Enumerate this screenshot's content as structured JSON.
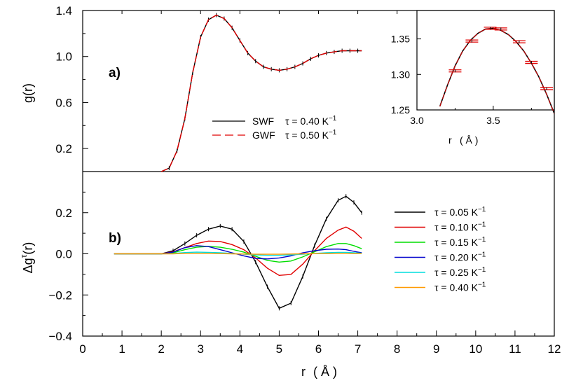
{
  "chart_data": [
    {
      "panel": "a)",
      "type": "line",
      "xlabel": "",
      "ylabel": "g(r)",
      "xlim": [
        0,
        12
      ],
      "ylim": [
        0.0,
        1.4
      ],
      "yticks": [
        "0.2",
        "0.6",
        "1.0",
        "1.4"
      ],
      "ytick_values": [
        0.2,
        0.6,
        1.0,
        1.4
      ],
      "series": [
        {
          "name": "SWF",
          "tau": "τ = 0.40 K",
          "unit_sup": "−1",
          "color": "#000000",
          "style": "solid",
          "x": [
            2.0,
            2.2,
            2.4,
            2.6,
            2.8,
            3.0,
            3.2,
            3.4,
            3.6,
            3.8,
            4.0,
            4.2,
            4.4,
            4.6,
            4.8,
            5.0,
            5.2,
            5.4,
            5.6,
            5.8,
            6.0,
            6.2,
            6.4,
            6.6,
            6.8,
            7.0,
            7.1
          ],
          "y": [
            0.0,
            0.03,
            0.18,
            0.46,
            0.86,
            1.17,
            1.32,
            1.36,
            1.33,
            1.25,
            1.14,
            1.03,
            0.96,
            0.91,
            0.89,
            0.88,
            0.89,
            0.91,
            0.94,
            0.98,
            1.01,
            1.03,
            1.04,
            1.05,
            1.05,
            1.05,
            1.05
          ]
        },
        {
          "name": "GWF",
          "tau": "τ = 0.50 K",
          "unit_sup": "−1",
          "color": "#e00000",
          "style": "dashed",
          "x": [
            2.0,
            2.2,
            2.4,
            2.6,
            2.8,
            3.0,
            3.2,
            3.4,
            3.6,
            3.8,
            4.0,
            4.2,
            4.4,
            4.6,
            4.8,
            5.0,
            5.2,
            5.4,
            5.6,
            5.8,
            6.0,
            6.2,
            6.4,
            6.6,
            6.8,
            7.0,
            7.1
          ],
          "y": [
            0.0,
            0.03,
            0.18,
            0.46,
            0.86,
            1.17,
            1.32,
            1.36,
            1.33,
            1.25,
            1.14,
            1.03,
            0.96,
            0.91,
            0.89,
            0.88,
            0.89,
            0.91,
            0.94,
            0.98,
            1.01,
            1.03,
            1.04,
            1.05,
            1.05,
            1.05,
            1.05
          ]
        }
      ]
    },
    {
      "panel": "inset",
      "type": "line",
      "xlabel": "r",
      "xlabel_unit": "( Å )",
      "xlim": [
        3.0,
        3.9
      ],
      "ylim": [
        1.25,
        1.39
      ],
      "xticks": [
        "3.0",
        "3.5"
      ],
      "xtick_values": [
        3.0,
        3.5
      ],
      "yticks": [
        "1.25",
        "1.30",
        "1.35"
      ],
      "ytick_values": [
        1.25,
        1.3,
        1.35
      ],
      "curve": {
        "x": [
          3.15,
          3.2,
          3.25,
          3.3,
          3.35,
          3.4,
          3.45,
          3.5,
          3.55,
          3.6,
          3.65,
          3.7,
          3.75,
          3.8,
          3.85,
          3.9
        ],
        "y": [
          1.255,
          1.285,
          1.312,
          1.333,
          1.348,
          1.358,
          1.364,
          1.365,
          1.362,
          1.356,
          1.346,
          1.333,
          1.316,
          1.296,
          1.272,
          1.245
        ]
      },
      "error_points": [
        {
          "x": 3.25,
          "y": 1.305
        },
        {
          "x": 3.36,
          "y": 1.347
        },
        {
          "x": 3.48,
          "y": 1.365
        },
        {
          "x": 3.55,
          "y": 1.364
        },
        {
          "x": 3.67,
          "y": 1.346
        },
        {
          "x": 3.75,
          "y": 1.317
        },
        {
          "x": 3.85,
          "y": 1.28
        }
      ]
    },
    {
      "panel": "b)",
      "type": "line",
      "xlabel": "r",
      "xlabel_unit": "( Å )",
      "ylabel": "Δg",
      "ylabel_sup": "τ",
      "ylabel_suffix": "(r)",
      "xlim": [
        0,
        12
      ],
      "ylim": [
        -0.4,
        0.4
      ],
      "xticks": [
        "0",
        "1",
        "2",
        "3",
        "4",
        "5",
        "6",
        "7",
        "8",
        "9",
        "10",
        "11",
        "12"
      ],
      "xtick_values": [
        0,
        1,
        2,
        3,
        4,
        5,
        6,
        7,
        8,
        9,
        10,
        11,
        12
      ],
      "yticks": [
        "−0.4",
        "−0.2",
        "0.0",
        "0.2"
      ],
      "ytick_values": [
        -0.4,
        -0.2,
        0.0,
        0.2
      ],
      "x": [
        0.8,
        1.5,
        2.0,
        2.3,
        2.6,
        2.9,
        3.2,
        3.5,
        3.8,
        4.1,
        4.4,
        4.7,
        5.0,
        5.3,
        5.6,
        5.9,
        6.2,
        6.5,
        6.7,
        6.9,
        7.1
      ],
      "series": [
        {
          "name": "τ = 0.05 K",
          "unit_sup": "−1",
          "color": "#000000",
          "values": [
            0,
            0,
            0,
            0.015,
            0.05,
            0.09,
            0.12,
            0.135,
            0.12,
            0.06,
            -0.04,
            -0.16,
            -0.265,
            -0.24,
            -0.11,
            0.04,
            0.17,
            0.26,
            0.28,
            0.25,
            0.2
          ]
        },
        {
          "name": "τ = 0.10 K",
          "unit_sup": "−1",
          "color": "#e00000",
          "values": [
            0,
            0,
            0,
            0.01,
            0.03,
            0.05,
            0.062,
            0.06,
            0.045,
            0.02,
            -0.02,
            -0.07,
            -0.105,
            -0.1,
            -0.05,
            0.015,
            0.075,
            0.115,
            0.13,
            0.11,
            0.075
          ]
        },
        {
          "name": "τ = 0.15 K",
          "unit_sup": "−1",
          "color": "#00dd00",
          "values": [
            0,
            0,
            0,
            0.005,
            0.02,
            0.032,
            0.036,
            0.032,
            0.022,
            0.008,
            -0.012,
            -0.032,
            -0.04,
            -0.035,
            -0.015,
            0.01,
            0.035,
            0.05,
            0.05,
            0.04,
            0.025
          ]
        },
        {
          "name": "τ = 0.20 K",
          "unit_sup": "−1",
          "color": "#0000cc",
          "values": [
            0,
            0,
            0,
            0.008,
            0.03,
            0.04,
            0.035,
            0.02,
            0.005,
            -0.01,
            -0.022,
            -0.025,
            -0.02,
            -0.01,
            0.005,
            0.015,
            0.022,
            0.023,
            0.02,
            0.012,
            0.005
          ]
        },
        {
          "name": "τ = 0.25 K",
          "unit_sup": "−1",
          "color": "#00dddd",
          "values": [
            0,
            0,
            0,
            0.002,
            0.006,
            0.008,
            0.007,
            0.005,
            0.002,
            -0.002,
            -0.005,
            -0.007,
            -0.007,
            -0.005,
            -0.002,
            0.002,
            0.005,
            0.007,
            0.007,
            0.005,
            0.003
          ]
        },
        {
          "name": "τ = 0.40 K",
          "unit_sup": "−1",
          "color": "#ff9900",
          "values": [
            0,
            0,
            0,
            0,
            0.002,
            0.002,
            0.002,
            0.001,
            0,
            -0.001,
            -0.002,
            -0.002,
            -0.002,
            -0.001,
            0,
            0.001,
            0.001,
            0.002,
            0.002,
            0.001,
            0.001
          ]
        }
      ]
    }
  ]
}
